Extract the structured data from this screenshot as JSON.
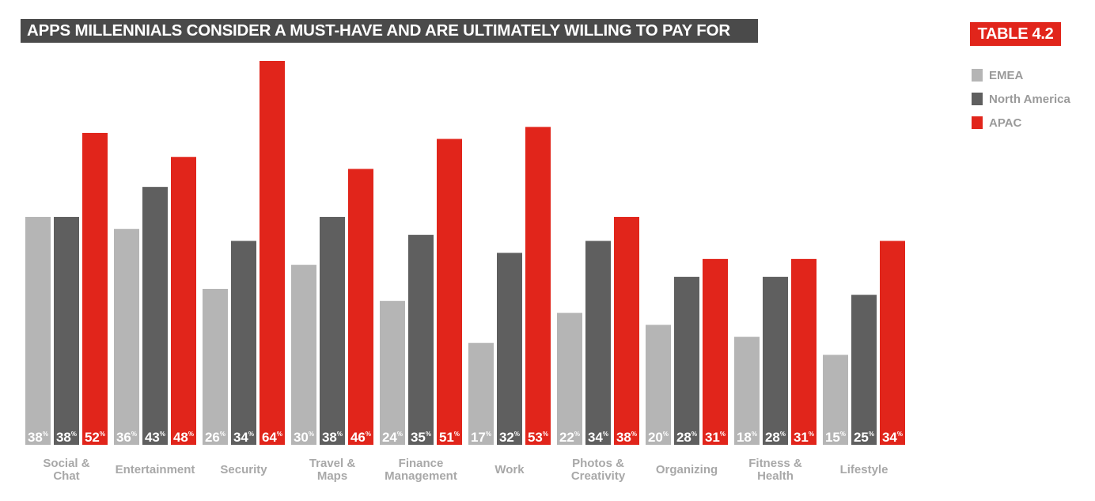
{
  "title": "APPS MILLENNIALS CONSIDER A MUST-HAVE AND ARE ULTIMATELY WILLING TO PAY FOR",
  "badge": "TABLE 4.2",
  "colors": {
    "EMEA": "#b5b5b5",
    "North America": "#5f5f5f",
    "APAC": "#e1251b",
    "title_bg": "#4a4a4a"
  },
  "legend": [
    {
      "label": "EMEA",
      "color": "#b5b5b5"
    },
    {
      "label": "North America",
      "color": "#5f5f5f"
    },
    {
      "label": "APAC",
      "color": "#e1251b"
    }
  ],
  "chart_data": {
    "type": "bar",
    "title": "APPS MILLENNIALS CONSIDER A MUST-HAVE AND ARE ULTIMATELY WILLING TO PAY FOR",
    "categories": [
      [
        "Social &",
        "Chat"
      ],
      [
        "Entertainment"
      ],
      [
        "Security"
      ],
      [
        "Travel &",
        "Maps"
      ],
      [
        "Finance",
        "Management"
      ],
      [
        "Work"
      ],
      [
        "Photos &",
        "Creativity"
      ],
      [
        "Organizing"
      ],
      [
        "Fitness &",
        "Health"
      ],
      [
        "Lifestyle"
      ]
    ],
    "series": [
      {
        "name": "EMEA",
        "values": [
          38,
          36,
          26,
          30,
          24,
          17,
          22,
          20,
          18,
          15
        ]
      },
      {
        "name": "North America",
        "values": [
          38,
          43,
          34,
          38,
          35,
          32,
          34,
          28,
          28,
          25
        ]
      },
      {
        "name": "APAC",
        "values": [
          52,
          48,
          64,
          46,
          51,
          53,
          38,
          31,
          31,
          34
        ]
      }
    ],
    "value_suffix": "%",
    "ylim": [
      0,
      64
    ],
    "grid": false,
    "legend_position": "top-right"
  }
}
